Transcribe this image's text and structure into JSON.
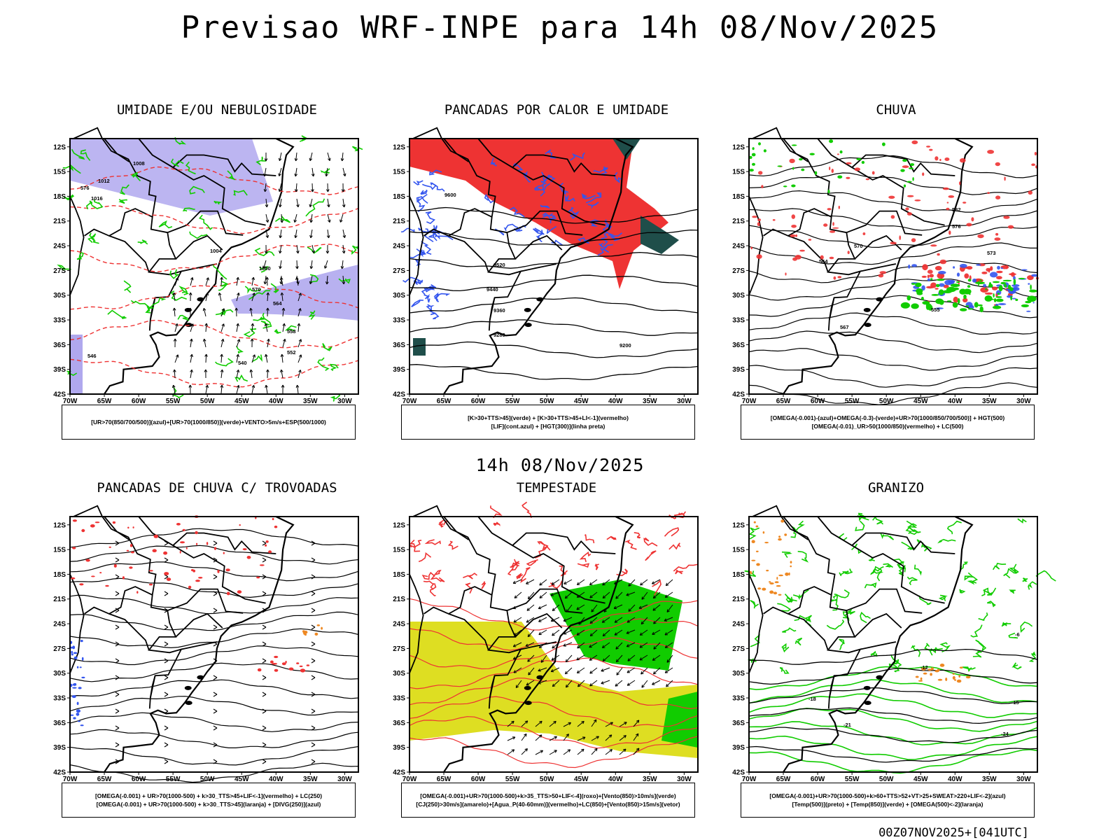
{
  "header": {
    "title": "Previsao WRF-INPE  para 14h 08/Nov/2025"
  },
  "subheader": {
    "label": "14h 08/Nov/2025"
  },
  "footer": {
    "run_stamp": "00Z07NOV2025+[041UTC]"
  },
  "axes": {
    "lat_ticks": [
      "12S",
      "15S",
      "18S",
      "21S",
      "24S",
      "27S",
      "30S",
      "33S",
      "36S",
      "39S",
      "42S"
    ],
    "lon_ticks": [
      "70W",
      "65W",
      "60W",
      "55W",
      "50W",
      "45W",
      "40W",
      "35W",
      "30W"
    ]
  },
  "colors": {
    "blue": "#3355ee",
    "green": "#11cc00",
    "red": "#ee3333",
    "lavender": "#b0a8ee",
    "yellow": "#dede22",
    "orange": "#ee8822",
    "teal": "#1f4e4a",
    "black": "#000000"
  },
  "chart_data": [
    {
      "type": "contour-map",
      "title": "UMIDADE E/OU NEBULOSIDADE",
      "legend": [
        "[UR>70(850/700/500)](azul)+[UR>70(1000/850)](verde)+VENTO>5m/s+ESP(500/1000)"
      ],
      "contour_labels": [
        "1008",
        "1012",
        "1016",
        "1000",
        "1004",
        "576",
        "570",
        "564",
        "558",
        "552",
        "546",
        "540"
      ]
    },
    {
      "type": "contour-map",
      "title": "PANCADAS POR CALOR E UMIDADE",
      "legend": [
        "[K>30+TTS>45](verde) + [K>30+TTS>45+LI<-1](vermelho)",
        "[LIF](cont.azul) + [HGT(300)](linha preta)"
      ],
      "contour_labels": [
        "9600",
        "9520",
        "9440",
        "9360",
        "9280",
        "9200"
      ]
    },
    {
      "type": "contour-map",
      "title": "CHUVA",
      "legend": [
        "[OMEGA(-0.001)-(azul)+OMEGA(-0.3)-(verde)+UR>70(1000/850/700/500)] + HGT(500)",
        "[OMEGA(-0.01)_UR>50(1000/850)(vermelho) + LC(500)"
      ],
      "contour_labels": [
        "582",
        "576",
        "570",
        "564",
        "555",
        "567",
        "573"
      ]
    },
    {
      "type": "streamline-map",
      "title": "PANCADAS DE CHUVA C/ TROVOADAS",
      "legend": [
        "[OMEGA(-0.001) + UR>70(1000-500) + k>30_TTS>45+LIF<-1](vermelho) + LC(250)",
        "[OMEGA(-0.001) + UR>70(1000-500) + k>30_TTS>45](laranja) + [DIVG(250)](azul)"
      ]
    },
    {
      "type": "vector-map",
      "title": "TEMPESTADE",
      "legend": [
        "[OMEGA(-0.001)+UR>70(1000-500)+k>35_TTS>50+LIF<-4](roxo)+[Vento(850)>10m/s](verde)",
        "[CJ(250)>30m/s](amarelo)+[Agua_P(40-60mm)](vermelho)+LC(850)+[Vento(850)>15m/s](vetor)"
      ]
    },
    {
      "type": "contour-map",
      "title": "GRANIZO",
      "legend": [
        "[OMEGA(-0.001)+UR>70(1000-500)+k>60+TTS>52+VT>25+SWEAT>220+LIF<-2](azul)",
        "[Temp(500)](preto) + [Temp(850)](verde) + [OMEGA(500)<-2](laranja)"
      ],
      "contour_labels": [
        "-6",
        "-12",
        "-15",
        "-18",
        "-21",
        "-24"
      ]
    }
  ]
}
